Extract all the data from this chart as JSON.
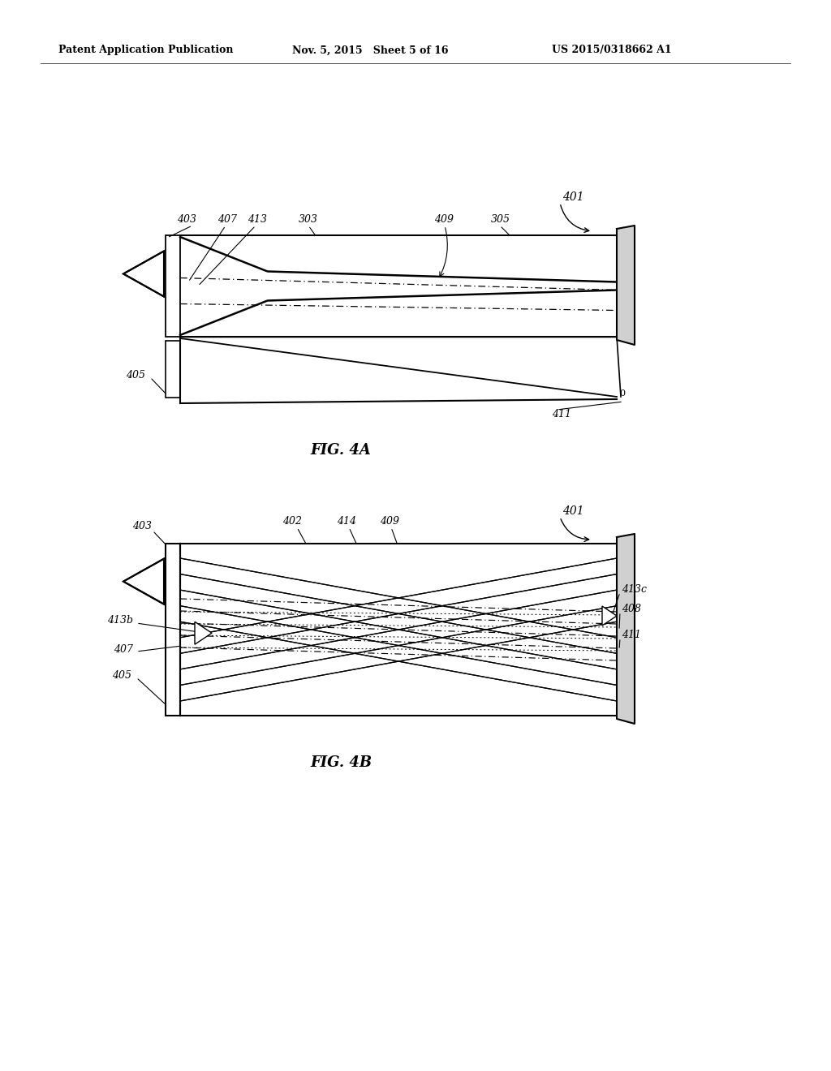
{
  "bg_color": "#ffffff",
  "header_left": "Patent Application Publication",
  "header_mid": "Nov. 5, 2015   Sheet 5 of 16",
  "header_right": "US 2015/0318662 A1",
  "fig4a_label": "FIG. 4A",
  "fig4b_label": "FIG. 4B"
}
